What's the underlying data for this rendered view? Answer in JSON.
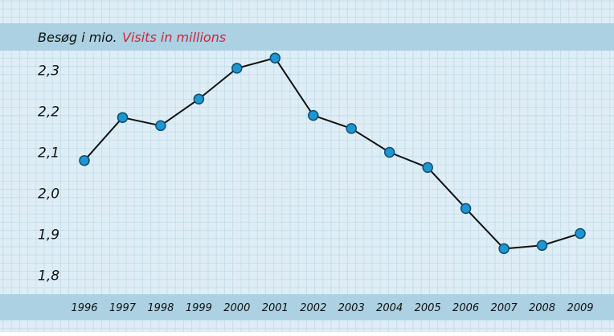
{
  "header": {
    "title_da": "Besøg i mio.",
    "title_en": "Visits in millions"
  },
  "colors": {
    "background": "#dfeef6",
    "grid": "#c6dfeb",
    "band": "#acd1e2",
    "line": "#111111",
    "marker_fill": "#1e96d2",
    "marker_stroke": "#0c4f73",
    "title_da": "#111111",
    "title_en": "#d0243a"
  },
  "chart_data": {
    "type": "line",
    "title": "Besøg i mio. Visits in millions",
    "xlabel": "",
    "ylabel": "",
    "x": [
      "1996",
      "1997",
      "1998",
      "1999",
      "2000",
      "2001",
      "2002",
      "2003",
      "2004",
      "2005",
      "2006",
      "2007",
      "2008",
      "2009"
    ],
    "series": [
      {
        "values": [
          2.08,
          2.185,
          2.165,
          2.23,
          2.305,
          2.33,
          2.19,
          2.158,
          2.1,
          2.063,
          1.963,
          1.865,
          1.873,
          1.902
        ]
      }
    ],
    "yticks": [
      "2,3",
      "2,2",
      "2,1",
      "2,0",
      "1,9",
      "1,8"
    ],
    "ytick_values": [
      2.3,
      2.2,
      2.1,
      2.0,
      1.9,
      1.8
    ],
    "ylim": [
      1.75,
      2.35
    ],
    "grid": true,
    "legend": "none"
  }
}
